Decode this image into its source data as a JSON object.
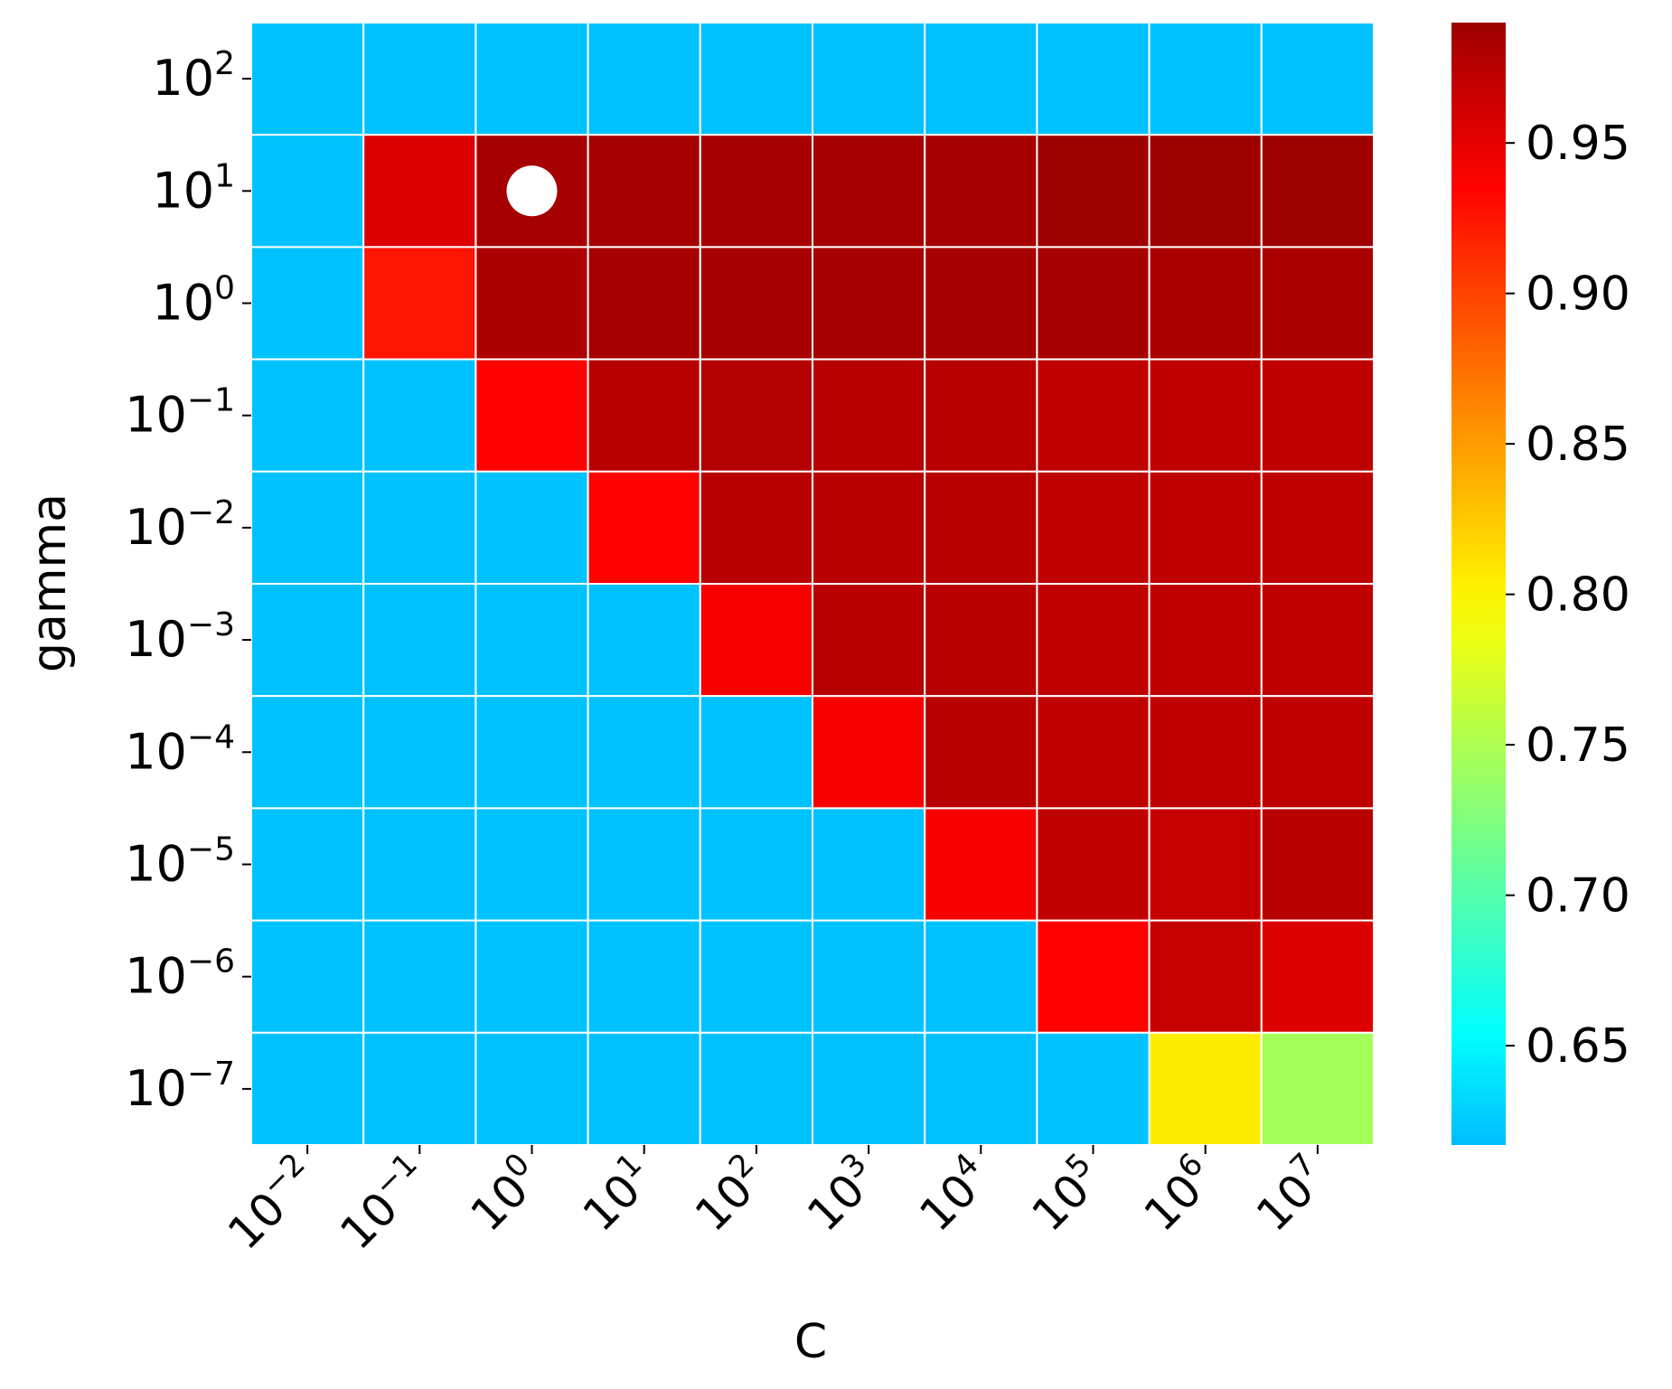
{
  "chart_data": {
    "type": "heatmap",
    "title": "",
    "xlabel": "C",
    "ylabel": "gamma",
    "x_categories": [
      {
        "base": "10",
        "exp": "−2"
      },
      {
        "base": "10",
        "exp": "−1"
      },
      {
        "base": "10",
        "exp": "0"
      },
      {
        "base": "10",
        "exp": "1"
      },
      {
        "base": "10",
        "exp": "2"
      },
      {
        "base": "10",
        "exp": "3"
      },
      {
        "base": "10",
        "exp": "4"
      },
      {
        "base": "10",
        "exp": "5"
      },
      {
        "base": "10",
        "exp": "6"
      },
      {
        "base": "10",
        "exp": "7"
      }
    ],
    "y_categories": [
      {
        "base": "10",
        "exp": "2"
      },
      {
        "base": "10",
        "exp": "1"
      },
      {
        "base": "10",
        "exp": "0"
      },
      {
        "base": "10",
        "exp": "−1"
      },
      {
        "base": "10",
        "exp": "−2"
      },
      {
        "base": "10",
        "exp": "−3"
      },
      {
        "base": "10",
        "exp": "−4"
      },
      {
        "base": "10",
        "exp": "−5"
      },
      {
        "base": "10",
        "exp": "−6"
      },
      {
        "base": "10",
        "exp": "−7"
      }
    ],
    "values": [
      [
        0.62,
        0.62,
        0.62,
        0.62,
        0.62,
        0.62,
        0.62,
        0.62,
        0.62,
        0.62
      ],
      [
        0.62,
        0.955,
        0.985,
        0.985,
        0.985,
        0.985,
        0.985,
        0.99,
        0.99,
        0.99
      ],
      [
        0.62,
        0.925,
        0.982,
        0.985,
        0.985,
        0.985,
        0.985,
        0.985,
        0.983,
        0.983
      ],
      [
        0.62,
        0.62,
        0.935,
        0.975,
        0.978,
        0.975,
        0.975,
        0.972,
        0.972,
        0.972
      ],
      [
        0.62,
        0.62,
        0.62,
        0.935,
        0.975,
        0.975,
        0.975,
        0.972,
        0.972,
        0.972
      ],
      [
        0.62,
        0.62,
        0.62,
        0.62,
        0.94,
        0.975,
        0.975,
        0.972,
        0.972,
        0.972
      ],
      [
        0.62,
        0.62,
        0.62,
        0.62,
        0.62,
        0.94,
        0.975,
        0.972,
        0.972,
        0.972
      ],
      [
        0.62,
        0.62,
        0.62,
        0.62,
        0.62,
        0.62,
        0.94,
        0.972,
        0.968,
        0.975
      ],
      [
        0.62,
        0.62,
        0.62,
        0.62,
        0.62,
        0.62,
        0.62,
        0.935,
        0.968,
        0.955
      ],
      [
        0.62,
        0.62,
        0.62,
        0.62,
        0.62,
        0.62,
        0.62,
        0.62,
        0.805,
        0.745
      ]
    ],
    "colormap": "jet",
    "vmin": 0.617,
    "vmax": 0.99,
    "colorbar_ticks": [
      "0.65",
      "0.70",
      "0.75",
      "0.80",
      "0.85",
      "0.90",
      "0.95"
    ],
    "marker": {
      "x_index": 2,
      "y_index": 1,
      "color": "#ffffff",
      "shape": "circle"
    },
    "grid_line_color": "#ffffff",
    "grid": true
  }
}
